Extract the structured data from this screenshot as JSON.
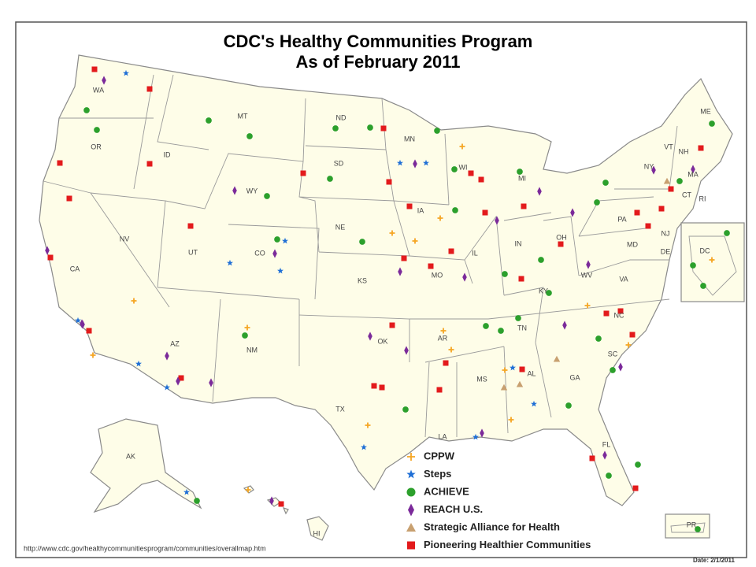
{
  "title": [
    "CDC's Healthy Communities Program",
    "As of February 2011"
  ],
  "states": [
    "WA",
    "OR",
    "CA",
    "ID",
    "NV",
    "MT",
    "WY",
    "UT",
    "CO",
    "AZ",
    "NM",
    "ND",
    "SD",
    "NE",
    "KS",
    "OK",
    "TX",
    "MN",
    "IA",
    "MO",
    "AR",
    "LA",
    "WI",
    "IL",
    "MI",
    "IN",
    "OH",
    "KY",
    "TN",
    "MS",
    "AL",
    "GA",
    "FL",
    "SC",
    "NC",
    "VA",
    "WV",
    "PA",
    "NY",
    "VT",
    "NH",
    "ME",
    "MA",
    "RI",
    "CT",
    "NJ",
    "MD",
    "DE",
    "DC",
    "AK",
    "HI",
    "PR"
  ],
  "legend": [
    {
      "name": "CPPW",
      "color": "#f5a623",
      "marker": "plus"
    },
    {
      "name": "Steps",
      "color": "#1f6fd6",
      "marker": "star"
    },
    {
      "name": "ACHIEVE",
      "color": "#2ca02c",
      "marker": "circle"
    },
    {
      "name": "REACH U.S.",
      "color": "#7b2a9a",
      "marker": "diamond"
    },
    {
      "name": "Strategic Alliance for Health",
      "color": "#c8a070",
      "marker": "triangle"
    },
    {
      "name": "Pioneering Healthier Communities",
      "color": "#e31a1c",
      "marker": "square"
    }
  ],
  "footer": {
    "url": "http://www.cdc.gov/healthycommunitiesprogram/communities/overallmap.htm",
    "date": "Date: 2/1/2011"
  }
}
